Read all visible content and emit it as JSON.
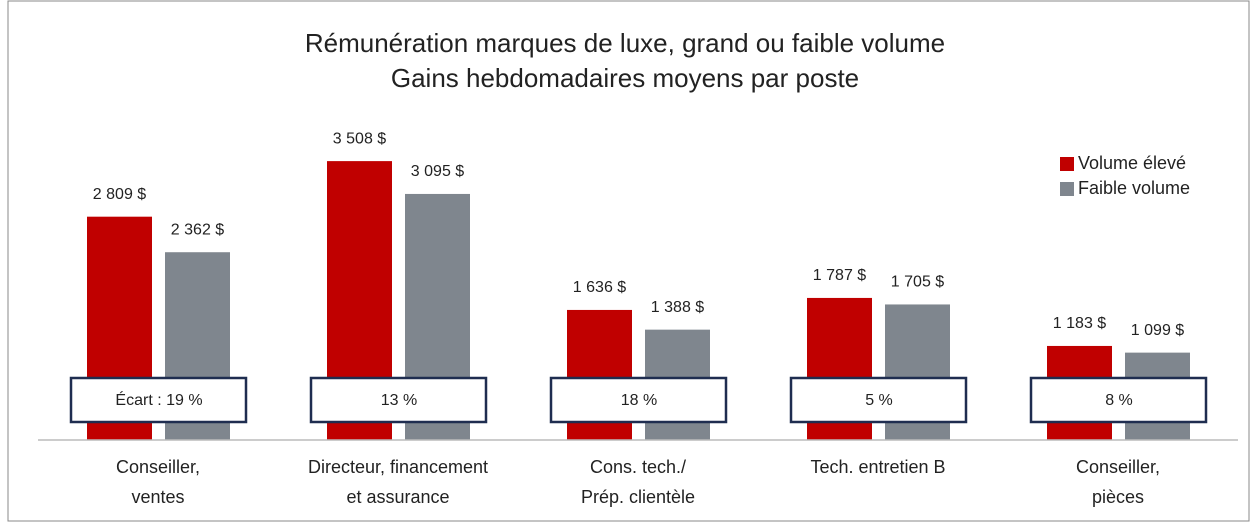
{
  "chart_data": {
    "type": "bar",
    "title": [
      "Rémunération marques de luxe, grand ou faible volume",
      "Gains hebdomadaires moyens par poste"
    ],
    "categories": [
      [
        "Conseiller,",
        "ventes"
      ],
      [
        "Directeur, financement",
        "et assurance"
      ],
      [
        "Cons. tech./",
        "Prép. clientèle"
      ],
      [
        "Tech. entretien B"
      ],
      [
        "Conseiller,",
        "pièces"
      ]
    ],
    "series": [
      {
        "name": "Volume élevé",
        "color": "#c00000",
        "values": [
          2809,
          3508,
          1636,
          1787,
          1183
        ],
        "value_labels": [
          "2 809 $",
          "3 508 $",
          "1 636 $",
          "1 787 $",
          "1 183 $"
        ]
      },
      {
        "name": "Faible volume",
        "color": "#7f868e",
        "values": [
          2362,
          3095,
          1388,
          1705,
          1099
        ],
        "value_labels": [
          "2 362 $",
          "3 095 $",
          "1 388 $",
          "1 705 $",
          "1 099 $"
        ]
      }
    ],
    "annotations": [
      "Écart : 19 %",
      "13 %",
      "18 %",
      "5 %",
      "8 %"
    ],
    "ylim": [
      0,
      4000
    ],
    "legend": "top-right"
  }
}
